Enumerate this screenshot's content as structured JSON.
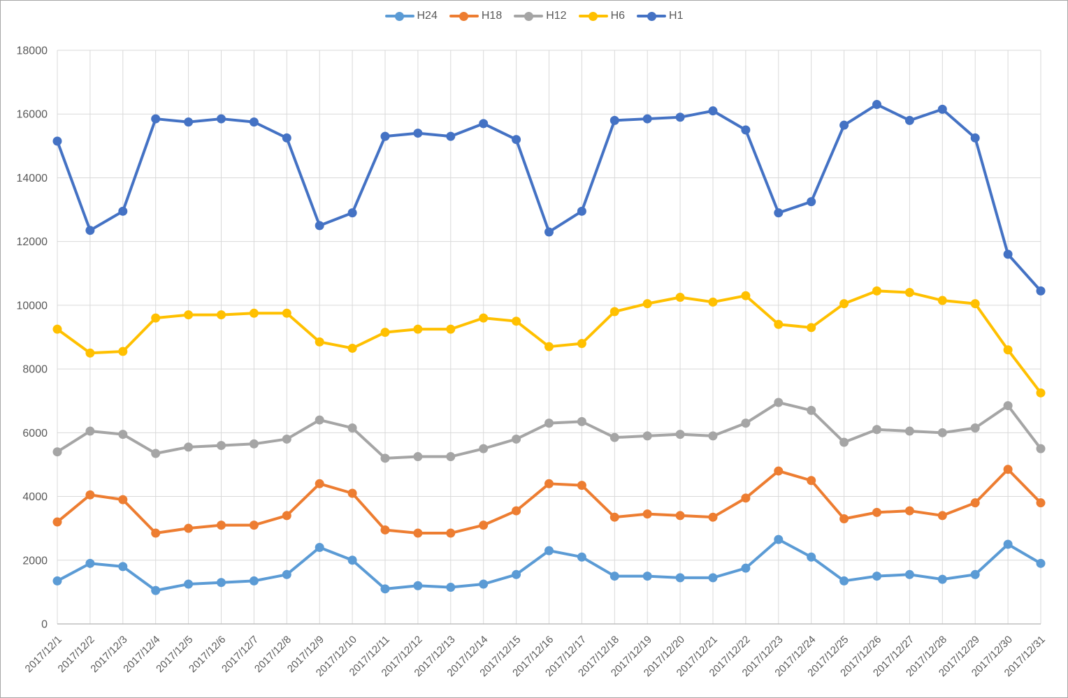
{
  "chart_data": {
    "type": "line",
    "title": "",
    "xlabel": "",
    "ylabel": "",
    "legend_position": "top",
    "grid": true,
    "marker": "circle",
    "ylim": [
      0,
      18000
    ],
    "ytick_interval": 2000,
    "ytick_labels": [
      "0",
      "2000",
      "4000",
      "6000",
      "8000",
      "10000",
      "12000",
      "14000",
      "16000",
      "18000"
    ],
    "x_categories": [
      "2017/12/1",
      "2017/12/2",
      "2017/12/3",
      "2017/12/4",
      "2017/12/5",
      "2017/12/6",
      "2017/12/7",
      "2017/12/8",
      "2017/12/9",
      "2017/12/10",
      "2017/12/11",
      "2017/12/12",
      "2017/12/13",
      "2017/12/14",
      "2017/12/15",
      "2017/12/16",
      "2017/12/17",
      "2017/12/18",
      "2017/12/19",
      "2017/12/20",
      "2017/12/21",
      "2017/12/22",
      "2017/12/23",
      "2017/12/24",
      "2017/12/25",
      "2017/12/26",
      "2017/12/27",
      "2017/12/28",
      "2017/12/29",
      "2017/12/30",
      "2017/12/31"
    ],
    "series": [
      {
        "name": "H24",
        "color": "#5B9BD5",
        "values": [
          1350,
          1900,
          1800,
          1050,
          1250,
          1300,
          1350,
          1550,
          2400,
          2000,
          1100,
          1200,
          1150,
          1250,
          1550,
          2300,
          2100,
          1500,
          1500,
          1450,
          1450,
          1750,
          2650,
          2100,
          1350,
          1500,
          1550,
          1400,
          1550,
          2500,
          1900
        ]
      },
      {
        "name": "H18",
        "color": "#ED7D31",
        "values": [
          3200,
          4050,
          3900,
          2850,
          3000,
          3100,
          3100,
          3400,
          4400,
          4100,
          2950,
          2850,
          2850,
          3100,
          3550,
          4400,
          4350,
          3350,
          3450,
          3400,
          3350,
          3950,
          4800,
          4500,
          3300,
          3500,
          3550,
          3400,
          3800,
          4850,
          3800
        ]
      },
      {
        "name": "H12",
        "color": "#A5A5A5",
        "values": [
          5400,
          6050,
          5950,
          5350,
          5550,
          5600,
          5650,
          5800,
          6400,
          6150,
          5200,
          5250,
          5250,
          5500,
          5800,
          6300,
          6350,
          5850,
          5900,
          5950,
          5900,
          6300,
          6950,
          6700,
          5700,
          6100,
          6050,
          6000,
          6150,
          6850,
          5500
        ]
      },
      {
        "name": "H6",
        "color": "#FFC000",
        "values": [
          9250,
          8500,
          8550,
          9600,
          9700,
          9700,
          9750,
          9750,
          8850,
          8650,
          9150,
          9250,
          9250,
          9600,
          9500,
          8700,
          8800,
          9800,
          10050,
          10250,
          10100,
          10300,
          9400,
          9300,
          10050,
          10450,
          10400,
          10150,
          10050,
          8600,
          7250
        ]
      },
      {
        "name": "H1",
        "color": "#4472C4",
        "values": [
          15150,
          12350,
          12950,
          15850,
          15750,
          15850,
          15750,
          15250,
          12500,
          12900,
          15300,
          15400,
          15300,
          15700,
          15200,
          12300,
          12950,
          15800,
          15850,
          15900,
          16100,
          15500,
          12900,
          13250,
          15650,
          16300,
          15800,
          16150,
          15250,
          11600,
          10450
        ]
      }
    ]
  },
  "style": {
    "gridline_color": "#D9D9D9",
    "axis_line_color": "#BFBFBF",
    "tick_label_color": "#595959",
    "background": "#FFFFFF"
  }
}
